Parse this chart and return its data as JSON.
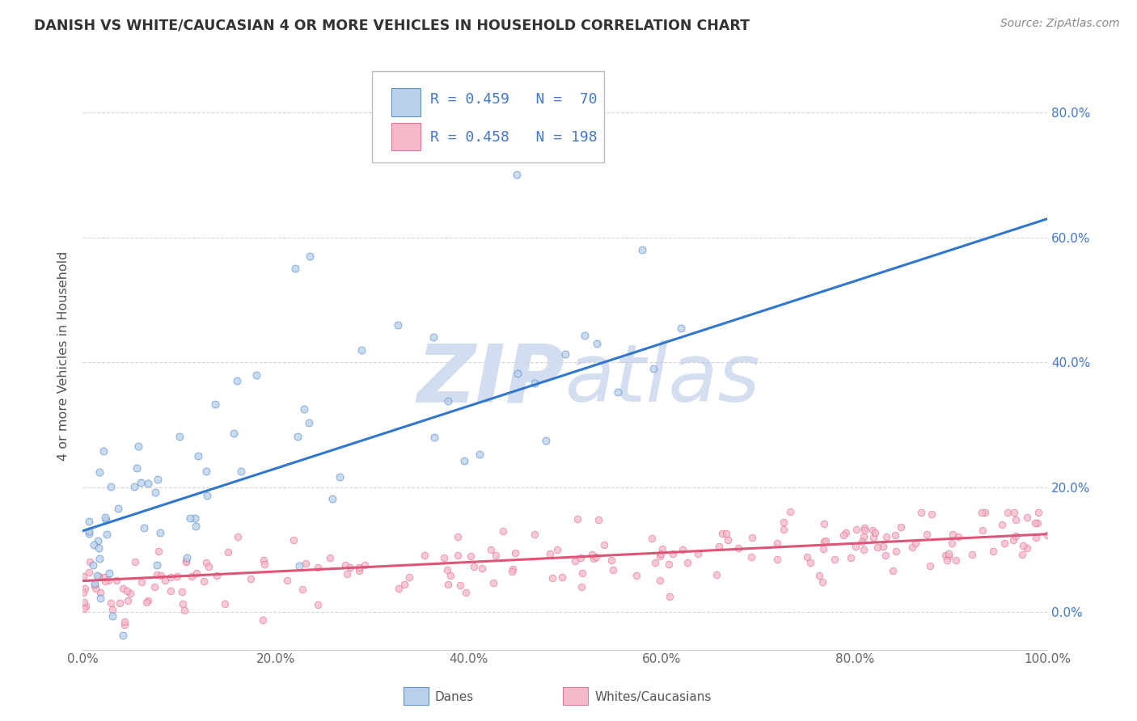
{
  "title": "DANISH VS WHITE/CAUCASIAN 4 OR MORE VEHICLES IN HOUSEHOLD CORRELATION CHART",
  "source": "Source: ZipAtlas.com",
  "ylabel": "4 or more Vehicles in Household",
  "ytick_values": [
    0.0,
    20.0,
    40.0,
    60.0,
    80.0
  ],
  "xlim": [
    0.0,
    100.0
  ],
  "ylim": [
    -6.0,
    88.0
  ],
  "danes_R": 0.459,
  "danes_N": 70,
  "whites_R": 0.458,
  "whites_N": 198,
  "danes_fill_color": "#b8d0ea",
  "whites_fill_color": "#f5b8c8",
  "danes_edge_color": "#5588cc",
  "whites_edge_color": "#e07090",
  "danes_line_color": "#3377cc",
  "whites_line_color": "#dd5577",
  "danes_line_intercept": 13.0,
  "danes_line_slope": 0.5,
  "whites_line_intercept": 5.0,
  "whites_line_slope": 0.075,
  "dash_x_start": 50.0,
  "dash_x_end": 100.0,
  "background_color": "#ffffff",
  "grid_color": "#cccccc",
  "watermark_color": "#ccd8ee"
}
